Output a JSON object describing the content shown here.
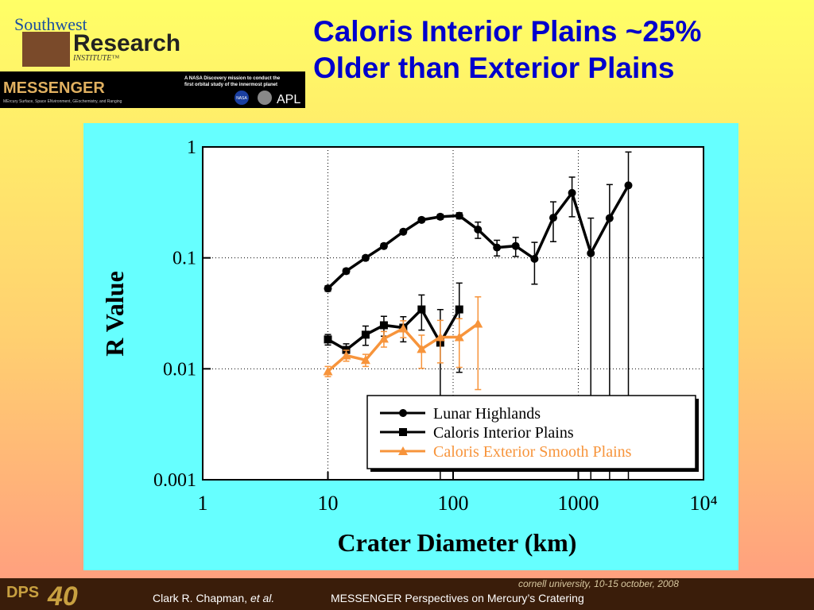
{
  "header": {
    "institute_1": "Southwest",
    "institute_2": "Research",
    "institute_3": "INSTITUTE™",
    "mission": "MESSENGER",
    "mission_sub": "MErcury Surface, Space ENvironment, GEochemistry, and Ranging",
    "mission_note_1": "A NASA Discovery mission to conduct the",
    "mission_note_2": "first orbital study of the innermost planet",
    "logo_1": "NASA",
    "logo_2": "APL",
    "title_1": "Caloris Interior Plains ~25%",
    "title_2": "Older than Exterior Plains"
  },
  "footer": {
    "author": "Clark R. Chapman, ",
    "etal": "et al.",
    "talk": "MESSENGER Perspectives on Mercury’s Cratering",
    "venue": "cornell university, 10-15 october, 2008",
    "badge_1": "DPS",
    "badge_2": "40"
  },
  "chart_data": {
    "type": "line",
    "x_label": "Crater Diameter (km)",
    "y_label": "R Value",
    "xlog": true,
    "ylog": true,
    "grid": true,
    "legend": "lower right",
    "xlim": [
      1,
      10000
    ],
    "ylim": [
      0.001,
      1
    ],
    "xticks": [
      1,
      10,
      100,
      1000,
      {
        "value": 10000,
        "label": "10⁴"
      }
    ],
    "yticks": [
      0.001,
      0.01,
      0.1,
      1
    ],
    "series": [
      {
        "name": "Lunar Highlands",
        "color": "#000000",
        "marker": "circle",
        "x": [
          10,
          14,
          20,
          28,
          40,
          56,
          79,
          112,
          158,
          224,
          316,
          447,
          631,
          891,
          1259,
          1778,
          2512
        ],
        "values": [
          0.053,
          0.076,
          0.1,
          0.128,
          0.172,
          0.22,
          0.235,
          0.24,
          0.18,
          0.124,
          0.128,
          0.098,
          0.23,
          0.385,
          0.11,
          0.228,
          0.45
        ],
        "errors": [
          0.003,
          0.004,
          0.005,
          0.006,
          0.008,
          0.01,
          0.012,
          0.015,
          0.03,
          0.02,
          0.025,
          0.04,
          0.09,
          0.15,
          0.118,
          0.23,
          0.45
        ]
      },
      {
        "name": "Caloris Interior Plains",
        "color": "#000000",
        "marker": "square",
        "x": [
          10,
          14,
          20,
          28,
          40,
          56,
          79,
          112
        ],
        "values": [
          0.0184,
          0.0148,
          0.0203,
          0.0247,
          0.0235,
          0.0343,
          0.0172,
          0.0343
        ],
        "errors": [
          0.002,
          0.002,
          0.004,
          0.005,
          0.006,
          0.012,
          0.017,
          0.025
        ]
      },
      {
        "name": "Caloris Exterior Smooth Plains",
        "color": "#f7943b",
        "marker": "triangle",
        "x": [
          10,
          14,
          20,
          28,
          40,
          56,
          79,
          112,
          158
        ],
        "values": [
          0.0095,
          0.0132,
          0.012,
          0.0187,
          0.0231,
          0.0151,
          0.0193,
          0.0193,
          0.0255
        ],
        "errors": [
          0.001,
          0.0015,
          0.0015,
          0.003,
          0.004,
          0.005,
          0.008,
          0.009,
          0.019
        ]
      }
    ]
  }
}
